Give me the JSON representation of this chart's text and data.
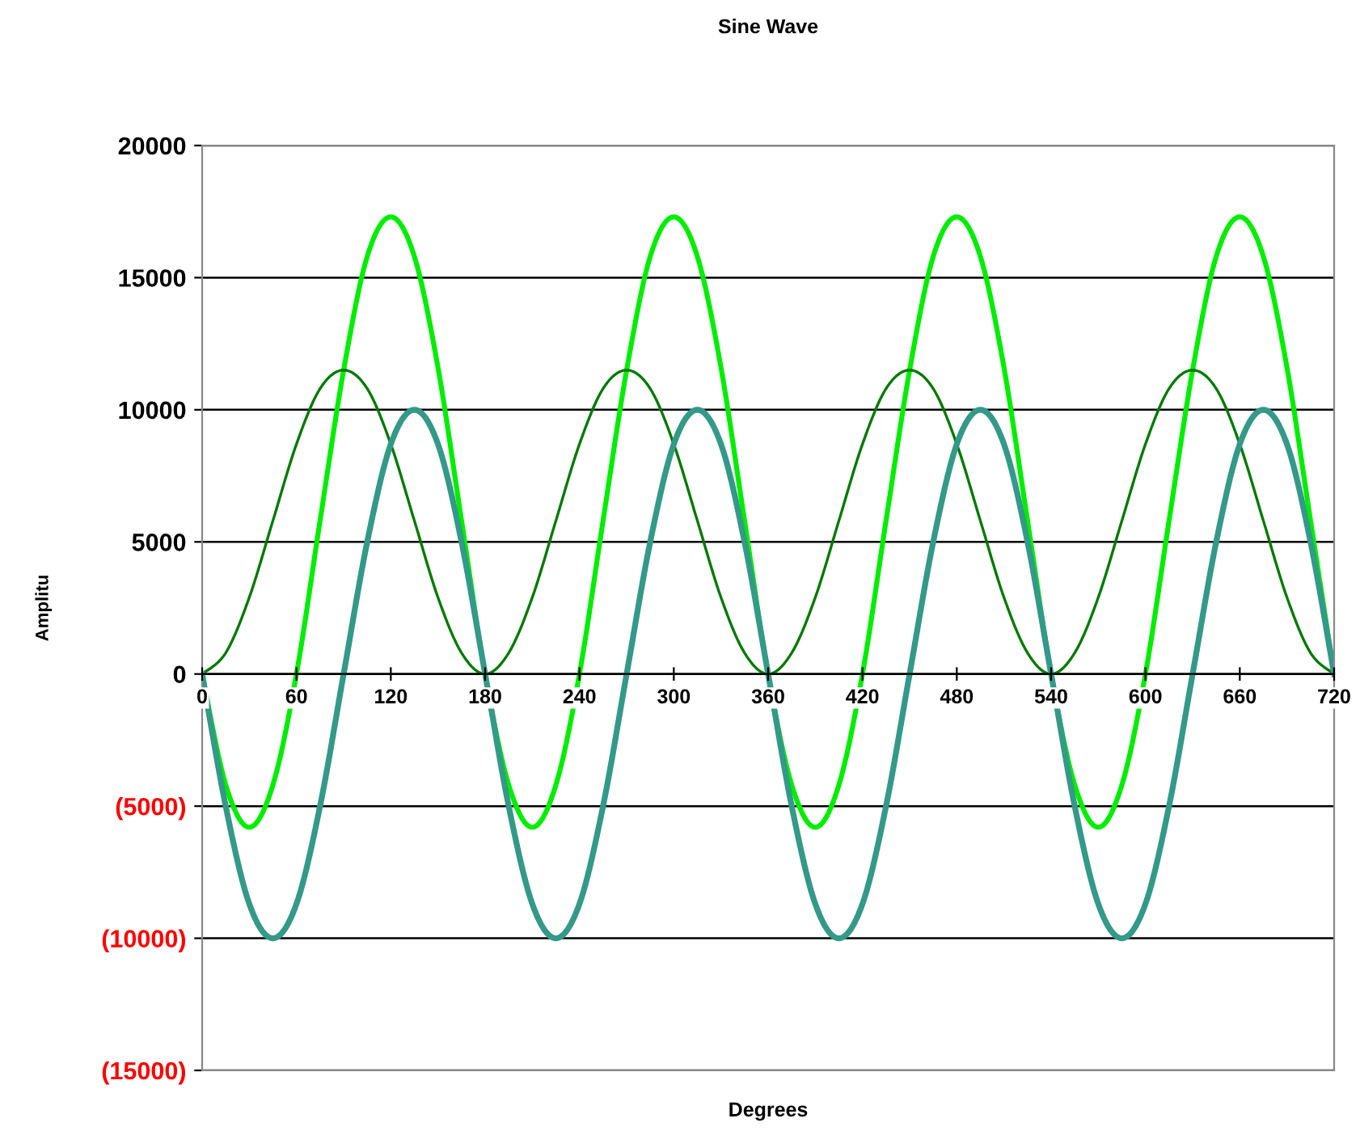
{
  "chart_data": {
    "type": "line",
    "title": "Sine Wave",
    "xlabel": "Degrees",
    "ylabel": "Amplitu",
    "x": [
      0,
      15,
      30,
      45,
      60,
      75,
      90,
      105,
      120,
      135,
      150,
      165,
      180,
      195,
      210,
      225,
      240,
      255,
      270,
      285,
      300,
      315,
      330,
      345,
      360,
      375,
      390,
      405,
      420,
      435,
      450,
      465,
      480,
      495,
      510,
      525,
      540,
      555,
      570,
      585,
      600,
      615,
      630,
      645,
      660,
      675,
      690,
      705,
      720
    ],
    "series": [
      {
        "color": "#00ee00",
        "values": [
          0,
          -4200,
          -5800,
          -4200,
          0,
          5800,
          11500,
          15800,
          17300,
          15800,
          11600,
          5800,
          0,
          -4200,
          -5800,
          -4200,
          0,
          5800,
          11500,
          15800,
          17300,
          15800,
          11600,
          5800,
          0,
          -4200,
          -5800,
          -4200,
          0,
          5800,
          11500,
          15800,
          17300,
          15800,
          11600,
          5800,
          0,
          -4200,
          -5800,
          -4200,
          0,
          5800,
          11500,
          15800,
          17300,
          15800,
          11600,
          5800,
          0
        ]
      },
      {
        "color": "#007a00",
        "values": [
          0,
          800,
          2900,
          5800,
          8700,
          10800,
          11500,
          10800,
          8700,
          5800,
          2900,
          800,
          0,
          800,
          2900,
          5800,
          8700,
          10800,
          11500,
          10800,
          8700,
          5800,
          2900,
          800,
          0,
          800,
          2900,
          5800,
          8700,
          10800,
          11500,
          10800,
          8700,
          5800,
          2900,
          800,
          0,
          800,
          2900,
          5800,
          8700,
          10800,
          11500,
          10800,
          8700,
          5800,
          2900,
          800,
          0
        ]
      },
      {
        "color": "#339988",
        "values": [
          0,
          -5000,
          -8700,
          -10000,
          -8700,
          -5000,
          0,
          5000,
          8700,
          10000,
          8700,
          5000,
          0,
          -5000,
          -8700,
          -10000,
          -8700,
          -5000,
          0,
          5000,
          8700,
          10000,
          8700,
          5000,
          0,
          -5000,
          -8700,
          -10000,
          -8700,
          -5000,
          0,
          5000,
          8700,
          10000,
          8700,
          5000,
          0,
          -5000,
          -8700,
          -10000,
          -8700,
          -5000,
          0,
          5000,
          8700,
          10000,
          8700,
          5000,
          0
        ]
      }
    ],
    "xlim": [
      0,
      720
    ],
    "xticks": [
      0,
      60,
      120,
      180,
      240,
      300,
      360,
      420,
      480,
      540,
      600,
      660,
      720
    ],
    "ylim": [
      -15000,
      20000
    ],
    "yticks": [
      {
        "value": -15000,
        "label": "(15000)"
      },
      {
        "value": -10000,
        "label": "(10000)"
      },
      {
        "value": -5000,
        "label": "(5000)"
      },
      0,
      5000,
      10000,
      15000,
      20000
    ],
    "grid": "y",
    "legend": false,
    "marker": "none",
    "line_style": "solid"
  }
}
